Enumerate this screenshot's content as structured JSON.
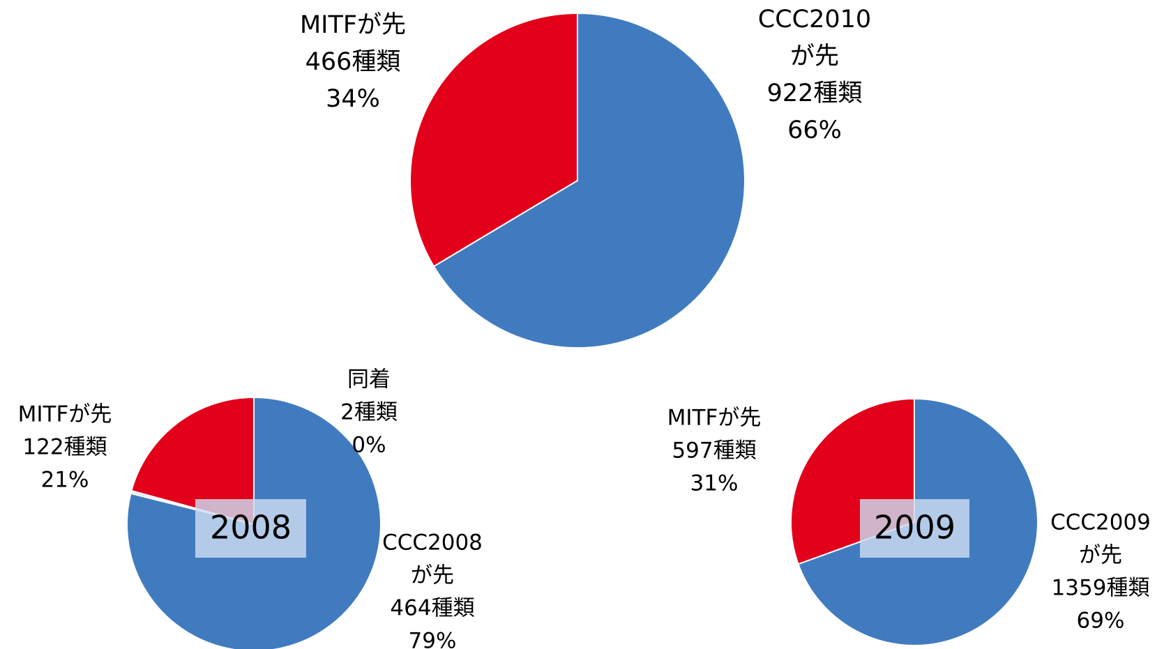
{
  "chart_data": [
    {
      "type": "pie",
      "categories": [
        [
          "CCC2010",
          "が先"
        ],
        [
          "MITFが先"
        ]
      ],
      "values": [
        922,
        466
      ],
      "value_labels": [
        "922種類",
        "466種類"
      ],
      "percent_labels": [
        "66%",
        "34%"
      ],
      "colors": [
        "#417bbf",
        "#e2001a"
      ]
    },
    {
      "type": "pie",
      "title": "2008",
      "categories": [
        [
          "CCC2008",
          "が先"
        ],
        [
          "同着"
        ],
        [
          "MITFが先"
        ]
      ],
      "values": [
        464,
        2,
        122
      ],
      "value_labels": [
        "464種類",
        "2種類",
        "122種類"
      ],
      "percent_labels": [
        "79%",
        "0%",
        "21%"
      ],
      "colors": [
        "#417bbf",
        "#dfe6f2",
        "#e2001a"
      ]
    },
    {
      "type": "pie",
      "title": "2009",
      "categories": [
        [
          "CCC2009",
          "が先"
        ],
        [
          "MITFが先"
        ]
      ],
      "values": [
        1359,
        597
      ],
      "value_labels": [
        "1359種類",
        "597種類"
      ],
      "percent_labels": [
        "69%",
        "31%"
      ],
      "colors": [
        "#417bbf",
        "#e2001a"
      ]
    }
  ]
}
